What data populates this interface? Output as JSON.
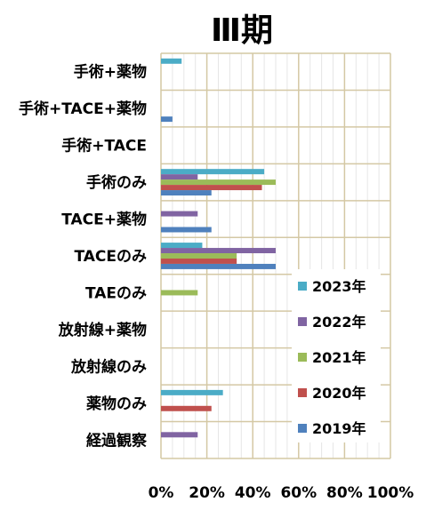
{
  "chart_data": {
    "type": "bar",
    "orientation": "horizontal",
    "title": "Ⅲ期",
    "categories": [
      "手術+薬物",
      "手術+TACE+薬物",
      "手術+TACE",
      "手術のみ",
      "TACE+薬物",
      "TACEのみ",
      "TAEのみ",
      "放射線+薬物",
      "放射線のみ",
      "薬物のみ",
      "経過観察"
    ],
    "x_ticks": [
      "0%",
      "20%",
      "40%",
      "60%",
      "80%",
      "100%"
    ],
    "xlim": [
      0,
      100
    ],
    "grid": true,
    "legend_position": "right",
    "series": [
      {
        "name": "2023年",
        "color": "#4bacc6",
        "values": [
          9,
          0,
          0,
          45,
          0,
          18,
          0,
          0,
          0,
          27,
          0
        ]
      },
      {
        "name": "2022年",
        "color": "#8064a2",
        "values": [
          0,
          0,
          0,
          16,
          16,
          50,
          0,
          0,
          0,
          0,
          16
        ]
      },
      {
        "name": "2021年",
        "color": "#9bbb59",
        "values": [
          0,
          0,
          0,
          50,
          0,
          33,
          16,
          0,
          0,
          0,
          0
        ]
      },
      {
        "name": "2020年",
        "color": "#c0504d",
        "values": [
          0,
          0,
          0,
          44,
          0,
          33,
          0,
          0,
          0,
          22,
          0
        ]
      },
      {
        "name": "2019年",
        "color": "#4f81bd",
        "values": [
          0,
          5,
          0,
          22,
          22,
          50,
          0,
          0,
          0,
          0,
          0
        ]
      }
    ]
  }
}
